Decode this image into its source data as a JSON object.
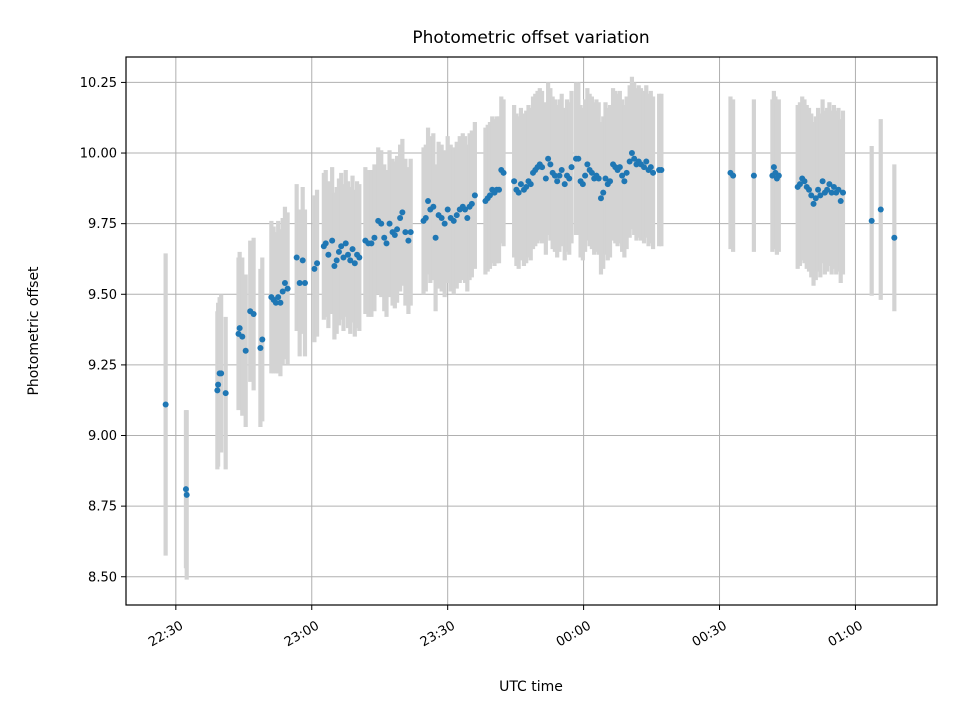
{
  "chart_data": {
    "type": "scatter",
    "title": "Photometric offset variation",
    "xlabel": "UTC time",
    "ylabel": "Photometric offset",
    "xlim": [
      "22:19",
      "01:18"
    ],
    "ylim": [
      8.4,
      10.34
    ],
    "x_ticks": [
      "22:30",
      "23:00",
      "23:30",
      "00:00",
      "00:30",
      "01:00"
    ],
    "y_ticks": [
      "8.50",
      "8.75",
      "9.00",
      "9.25",
      "9.50",
      "9.75",
      "10.00",
      "10.25"
    ],
    "grid": true,
    "colors": {
      "marker": "#1f77b4",
      "errorbar": "#d3d3d3",
      "grid": "#b0b0b0"
    },
    "series": [
      {
        "points": [
          [
            "22:27:45",
            9.11,
            0.535
          ],
          [
            "22:32:14",
            8.81,
            0.28
          ],
          [
            "22:32:24",
            8.79,
            0.3
          ],
          [
            "22:39:10",
            9.16,
            0.28
          ],
          [
            "22:39:20",
            9.18,
            0.29
          ],
          [
            "22:39:40",
            9.22,
            0.27
          ],
          [
            "22:40:00",
            9.22,
            0.28
          ],
          [
            "22:41:00",
            9.15,
            0.27
          ],
          [
            "22:43:50",
            9.36,
            0.27
          ],
          [
            "22:44:05",
            9.38,
            0.27
          ],
          [
            "22:44:40",
            9.35,
            0.28
          ],
          [
            "22:45:25",
            9.3,
            0.27
          ],
          [
            "22:46:25",
            9.44,
            0.25
          ],
          [
            "22:47:10",
            9.43,
            0.27
          ],
          [
            "22:48:40",
            9.31,
            0.28
          ],
          [
            "22:49:05",
            9.34,
            0.29
          ],
          [
            "22:51:05",
            9.49,
            0.27
          ],
          [
            "22:51:35",
            9.48,
            0.26
          ],
          [
            "22:52:05",
            9.47,
            0.25
          ],
          [
            "22:52:35",
            9.49,
            0.27
          ],
          [
            "22:53:05",
            9.47,
            0.26
          ],
          [
            "22:53:35",
            9.51,
            0.26
          ],
          [
            "22:54:05",
            9.54,
            0.27
          ],
          [
            "22:54:40",
            9.52,
            0.27
          ],
          [
            "22:56:40",
            9.63,
            0.26
          ],
          [
            "22:57:20",
            9.54,
            0.26
          ],
          [
            "22:58:00",
            9.62,
            0.26
          ],
          [
            "22:58:30",
            9.54,
            0.26
          ],
          [
            "23:00:35",
            9.59,
            0.26
          ],
          [
            "23:01:10",
            9.61,
            0.26
          ],
          [
            "23:02:40",
            9.67,
            0.26
          ],
          [
            "23:03:05",
            9.68,
            0.26
          ],
          [
            "23:03:40",
            9.64,
            0.26
          ],
          [
            "23:04:30",
            9.69,
            0.26
          ],
          [
            "23:05:00",
            9.6,
            0.26
          ],
          [
            "23:05:30",
            9.62,
            0.26
          ],
          [
            "23:06:00",
            9.65,
            0.26
          ],
          [
            "23:06:30",
            9.67,
            0.26
          ],
          [
            "23:07:00",
            9.63,
            0.26
          ],
          [
            "23:07:30",
            9.68,
            0.26
          ],
          [
            "23:08:00",
            9.64,
            0.26
          ],
          [
            "23:08:30",
            9.62,
            0.26
          ],
          [
            "23:09:00",
            9.66,
            0.26
          ],
          [
            "23:09:30",
            9.61,
            0.26
          ],
          [
            "23:10:00",
            9.64,
            0.26
          ],
          [
            "23:10:30",
            9.63,
            0.26
          ],
          [
            "23:11:50",
            9.69,
            0.26
          ],
          [
            "23:12:30",
            9.68,
            0.26
          ],
          [
            "23:13:10",
            9.68,
            0.26
          ],
          [
            "23:13:50",
            9.7,
            0.26
          ],
          [
            "23:14:40",
            9.76,
            0.26
          ],
          [
            "23:15:20",
            9.75,
            0.26
          ],
          [
            "23:16:00",
            9.7,
            0.26
          ],
          [
            "23:16:30",
            9.68,
            0.26
          ],
          [
            "23:17:10",
            9.75,
            0.26
          ],
          [
            "23:17:50",
            9.72,
            0.26
          ],
          [
            "23:18:20",
            9.71,
            0.26
          ],
          [
            "23:18:50",
            9.73,
            0.26
          ],
          [
            "23:19:30",
            9.77,
            0.26
          ],
          [
            "23:20:00",
            9.79,
            0.26
          ],
          [
            "23:20:40",
            9.72,
            0.26
          ],
          [
            "23:21:20",
            9.69,
            0.26
          ],
          [
            "23:21:50",
            9.72,
            0.26
          ],
          [
            "23:24:40",
            9.76,
            0.26
          ],
          [
            "23:25:10",
            9.77,
            0.26
          ],
          [
            "23:25:40",
            9.83,
            0.26
          ],
          [
            "23:26:10",
            9.8,
            0.26
          ],
          [
            "23:26:50",
            9.81,
            0.26
          ],
          [
            "23:27:20",
            9.7,
            0.26
          ],
          [
            "23:28:00",
            9.78,
            0.26
          ],
          [
            "23:28:40",
            9.77,
            0.26
          ],
          [
            "23:29:20",
            9.75,
            0.26
          ],
          [
            "23:30:00",
            9.8,
            0.26
          ],
          [
            "23:30:40",
            9.77,
            0.26
          ],
          [
            "23:31:20",
            9.76,
            0.26
          ],
          [
            "23:32:00",
            9.78,
            0.26
          ],
          [
            "23:32:40",
            9.8,
            0.26
          ],
          [
            "23:33:20",
            9.81,
            0.26
          ],
          [
            "23:33:50",
            9.8,
            0.26
          ],
          [
            "23:34:20",
            9.77,
            0.26
          ],
          [
            "23:34:50",
            9.81,
            0.26
          ],
          [
            "23:35:20",
            9.82,
            0.26
          ],
          [
            "23:36:00",
            9.85,
            0.26
          ],
          [
            "23:38:20",
            9.83,
            0.26
          ],
          [
            "23:38:50",
            9.84,
            0.26
          ],
          [
            "23:39:20",
            9.85,
            0.26
          ],
          [
            "23:39:50",
            9.87,
            0.26
          ],
          [
            "23:40:20",
            9.86,
            0.26
          ],
          [
            "23:40:50",
            9.87,
            0.26
          ],
          [
            "23:41:20",
            9.87,
            0.26
          ],
          [
            "23:41:50",
            9.94,
            0.26
          ],
          [
            "23:42:20",
            9.93,
            0.26
          ],
          [
            "23:44:40",
            9.9,
            0.27
          ],
          [
            "23:45:10",
            9.87,
            0.27
          ],
          [
            "23:45:40",
            9.86,
            0.27
          ],
          [
            "23:46:10",
            9.89,
            0.27
          ],
          [
            "23:46:50",
            9.87,
            0.27
          ],
          [
            "23:47:20",
            9.88,
            0.27
          ],
          [
            "23:47:50",
            9.9,
            0.27
          ],
          [
            "23:48:20",
            9.89,
            0.27
          ],
          [
            "23:48:50",
            9.93,
            0.27
          ],
          [
            "23:49:20",
            9.94,
            0.27
          ],
          [
            "23:49:50",
            9.95,
            0.27
          ],
          [
            "23:50:20",
            9.96,
            0.27
          ],
          [
            "23:50:50",
            9.95,
            0.27
          ],
          [
            "23:51:40",
            9.91,
            0.27
          ],
          [
            "23:52:10",
            9.98,
            0.27
          ],
          [
            "23:52:40",
            9.96,
            0.27
          ],
          [
            "23:53:10",
            9.93,
            0.27
          ],
          [
            "23:53:40",
            9.92,
            0.27
          ],
          [
            "23:54:10",
            9.9,
            0.27
          ],
          [
            "23:54:40",
            9.92,
            0.27
          ],
          [
            "23:55:10",
            9.94,
            0.27
          ],
          [
            "23:55:50",
            9.89,
            0.27
          ],
          [
            "23:56:20",
            9.92,
            0.27
          ],
          [
            "23:56:50",
            9.91,
            0.27
          ],
          [
            "23:57:20",
            9.95,
            0.27
          ],
          [
            "23:58:20",
            9.98,
            0.27
          ],
          [
            "23:58:50",
            9.98,
            0.27
          ],
          [
            "23:59:20",
            9.9,
            0.27
          ],
          [
            "23:59:50",
            9.89,
            0.27
          ],
          [
            "00:00:20",
            9.92,
            0.27
          ],
          [
            "00:00:50",
            9.96,
            0.27
          ],
          [
            "00:01:20",
            9.94,
            0.27
          ],
          [
            "00:01:50",
            9.93,
            0.27
          ],
          [
            "00:02:20",
            9.91,
            0.27
          ],
          [
            "00:02:50",
            9.92,
            0.27
          ],
          [
            "00:03:20",
            9.91,
            0.27
          ],
          [
            "00:03:50",
            9.84,
            0.27
          ],
          [
            "00:04:20",
            9.86,
            0.27
          ],
          [
            "00:04:50",
            9.91,
            0.27
          ],
          [
            "00:05:20",
            9.89,
            0.27
          ],
          [
            "00:05:50",
            9.9,
            0.27
          ],
          [
            "00:06:30",
            9.96,
            0.27
          ],
          [
            "00:07:00",
            9.95,
            0.27
          ],
          [
            "00:07:30",
            9.94,
            0.27
          ],
          [
            "00:08:00",
            9.95,
            0.27
          ],
          [
            "00:08:30",
            9.92,
            0.27
          ],
          [
            "00:09:00",
            9.9,
            0.27
          ],
          [
            "00:09:30",
            9.93,
            0.27
          ],
          [
            "00:10:10",
            9.97,
            0.27
          ],
          [
            "00:10:40",
            10.0,
            0.27
          ],
          [
            "00:11:10",
            9.98,
            0.27
          ],
          [
            "00:11:40",
            9.96,
            0.27
          ],
          [
            "00:12:10",
            9.97,
            0.27
          ],
          [
            "00:12:40",
            9.96,
            0.27
          ],
          [
            "00:13:20",
            9.95,
            0.27
          ],
          [
            "00:13:50",
            9.97,
            0.27
          ],
          [
            "00:14:20",
            9.94,
            0.27
          ],
          [
            "00:14:50",
            9.95,
            0.27
          ],
          [
            "00:15:20",
            9.93,
            0.27
          ],
          [
            "00:16:40",
            9.94,
            0.27
          ],
          [
            "00:17:10",
            9.94,
            0.27
          ],
          [
            "00:32:25",
            9.93,
            0.27
          ],
          [
            "00:33:00",
            9.92,
            0.27
          ],
          [
            "00:37:35",
            9.92,
            0.27
          ],
          [
            "00:41:40",
            9.92,
            0.27
          ],
          [
            "00:42:00",
            9.95,
            0.27
          ],
          [
            "00:42:20",
            9.93,
            0.27
          ],
          [
            "00:42:40",
            9.91,
            0.27
          ],
          [
            "00:43:05",
            9.92,
            0.27
          ],
          [
            "00:47:15",
            9.88,
            0.29
          ],
          [
            "00:47:45",
            9.89,
            0.29
          ],
          [
            "00:48:15",
            9.91,
            0.29
          ],
          [
            "00:48:45",
            9.9,
            0.29
          ],
          [
            "00:49:15",
            9.88,
            0.29
          ],
          [
            "00:49:45",
            9.87,
            0.29
          ],
          [
            "00:50:15",
            9.85,
            0.29
          ],
          [
            "00:50:45",
            9.82,
            0.29
          ],
          [
            "00:51:15",
            9.84,
            0.29
          ],
          [
            "00:51:45",
            9.87,
            0.29
          ],
          [
            "00:52:15",
            9.85,
            0.29
          ],
          [
            "00:52:45",
            9.9,
            0.29
          ],
          [
            "00:53:15",
            9.86,
            0.29
          ],
          [
            "00:53:45",
            9.87,
            0.29
          ],
          [
            "00:54:15",
            9.89,
            0.29
          ],
          [
            "00:54:45",
            9.86,
            0.29
          ],
          [
            "00:55:15",
            9.88,
            0.29
          ],
          [
            "00:55:45",
            9.86,
            0.29
          ],
          [
            "00:56:15",
            9.87,
            0.29
          ],
          [
            "00:56:45",
            9.83,
            0.29
          ],
          [
            "00:57:15",
            9.86,
            0.29
          ],
          [
            "01:03:35",
            9.76,
            0.265
          ],
          [
            "01:05:35",
            9.8,
            0.32
          ],
          [
            "01:08:35",
            9.7,
            0.26
          ]
        ]
      }
    ]
  }
}
